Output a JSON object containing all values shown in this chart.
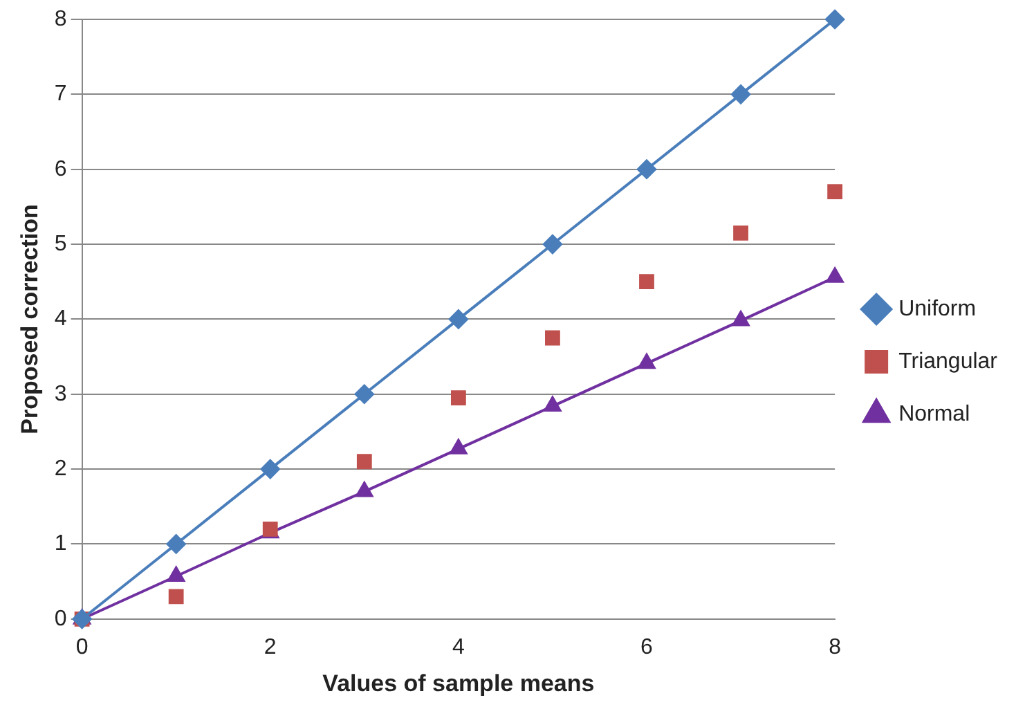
{
  "chart_data": {
    "type": "line",
    "xlabel": "Values of sample means",
    "ylabel": "Proposed correction",
    "xlim": [
      0,
      8
    ],
    "xticks": [
      0,
      2,
      4,
      6,
      8
    ],
    "ylim": [
      0,
      8
    ],
    "yticks": [
      0,
      1,
      2,
      3,
      4,
      5,
      6,
      7,
      8
    ],
    "grid": "y",
    "legend": "right",
    "x": [
      0,
      1,
      2,
      3,
      4,
      5,
      6,
      7,
      8
    ],
    "series": [
      {
        "name": "Uniform",
        "type": "line",
        "marker": "diamond",
        "color": "#4a7ebb",
        "values": [
          0,
          1,
          2,
          3,
          4,
          5,
          6,
          7,
          8
        ]
      },
      {
        "name": "Triangular",
        "type": "scatter",
        "marker": "square",
        "color": "#c0504d",
        "values": [
          0,
          0.3,
          1.2,
          2.1,
          2.95,
          3.75,
          4.5,
          5.15,
          5.7
        ]
      },
      {
        "name": "Normal",
        "type": "line",
        "marker": "triangle",
        "color": "#7030a0",
        "values": [
          0,
          0.57,
          1.15,
          1.7,
          2.27,
          2.84,
          3.41,
          3.98,
          4.56
        ]
      }
    ]
  }
}
